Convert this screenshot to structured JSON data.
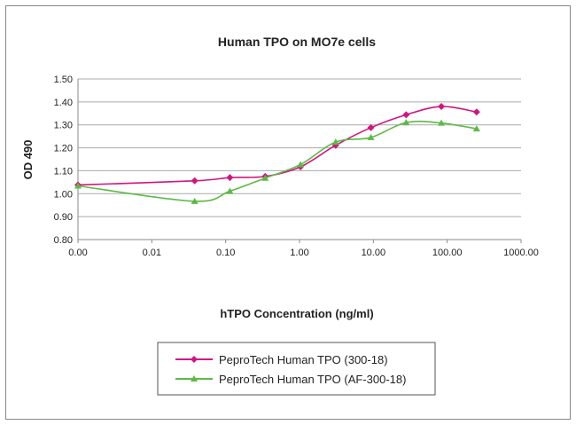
{
  "chart_data": {
    "type": "line",
    "title": "Human TPO on MO7e cells",
    "xlabel": "hTPO Concentration (ng/ml)",
    "ylabel": "OD 490",
    "x_scale": "log",
    "xlim": [
      0.001,
      1000
    ],
    "ylim": [
      0.8,
      1.5
    ],
    "x_tick_labels": [
      "0.00",
      "0.01",
      "0.10",
      "1.00",
      "10.00",
      "100.00",
      "1000.00"
    ],
    "y_tick_labels": [
      "0.80",
      "0.90",
      "1.00",
      "1.10",
      "1.20",
      "1.30",
      "1.40",
      "1.50"
    ],
    "grid": "horizontal",
    "legend_position": "bottom",
    "x": [
      0.001,
      0.038,
      0.114,
      0.343,
      1.03,
      3.09,
      9.26,
      27.8,
      83.3,
      250
    ],
    "series": [
      {
        "name": "PeproTech Human TPO (300-18)",
        "color": "#d0157f",
        "marker": "diamond",
        "values": [
          1.038,
          1.056,
          1.07,
          1.075,
          1.117,
          1.211,
          1.288,
          1.344,
          1.38,
          1.356
        ]
      },
      {
        "name": "PeproTech Human TPO (AF-300-18)",
        "color": "#5cba45",
        "marker": "triangle",
        "values": [
          1.034,
          0.967,
          1.011,
          1.068,
          1.127,
          1.225,
          1.245,
          1.31,
          1.308,
          1.283
        ]
      }
    ]
  }
}
